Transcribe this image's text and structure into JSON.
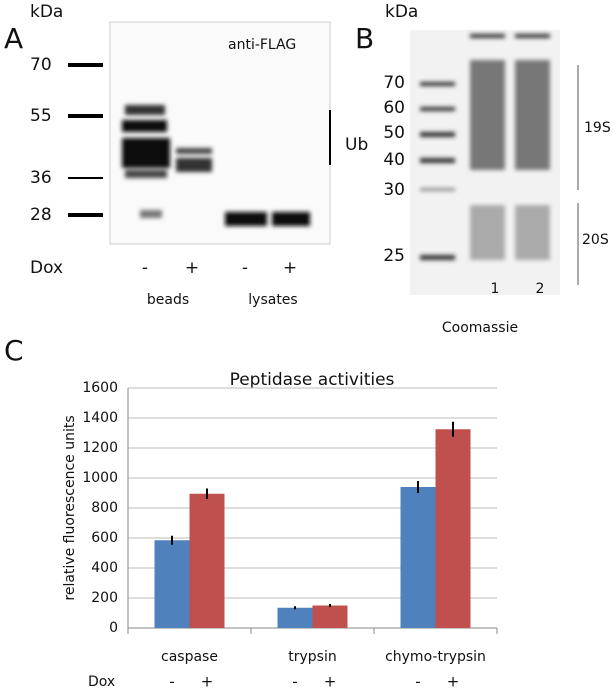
{
  "panel_a": {
    "label": "A",
    "unit": "kDa",
    "markers": [
      70,
      55,
      36,
      28
    ],
    "antibody": "anti-FLAG",
    "bracket": "Ub",
    "dox": "Dox",
    "signs": [
      "-",
      "+",
      "-",
      "+"
    ],
    "groups": [
      "beads",
      "lysates"
    ]
  },
  "panel_b": {
    "label": "B",
    "unit": "kDa",
    "markers": [
      70,
      60,
      50,
      40,
      30,
      25
    ],
    "regions": [
      "19S",
      "20S"
    ],
    "lanes": [
      1,
      2
    ],
    "stain": "Coomassie"
  },
  "panel_c": {
    "label": "C"
  },
  "chart_data": {
    "type": "bar",
    "title": "Peptidase activities",
    "y_label": "relative fluorescence units",
    "x_row_label": "Dox",
    "categories": [
      "caspase",
      "trypsin",
      "chymo-trypsin"
    ],
    "series": [
      {
        "name": "-",
        "color": "#4f81bd",
        "values": [
          585,
          135,
          940
        ],
        "errors": [
          30,
          10,
          40
        ]
      },
      {
        "name": "+",
        "color": "#c0504d",
        "values": [
          895,
          150,
          1325
        ],
        "errors": [
          35,
          10,
          50
        ]
      }
    ],
    "ylim": [
      0,
      1600
    ],
    "yticks": [
      0,
      200,
      400,
      600,
      800,
      1000,
      1200,
      1400,
      1600
    ],
    "grid": true
  }
}
